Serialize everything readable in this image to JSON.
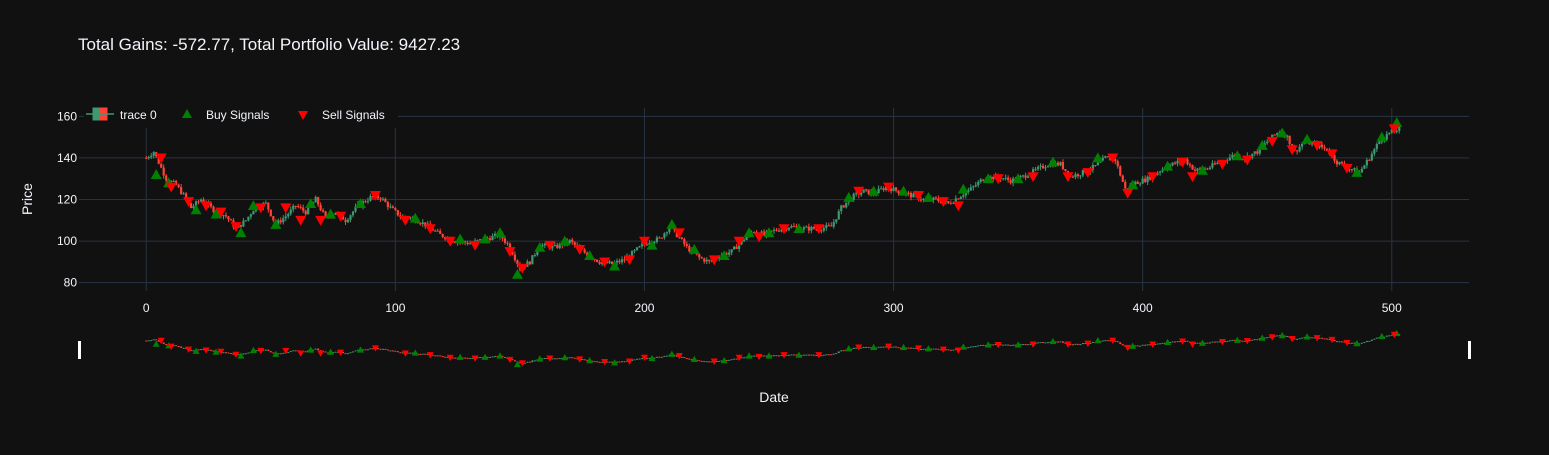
{
  "colors": {
    "background": "#111111",
    "grid": "#283442",
    "text": "#f2f5fa",
    "increasing": "#3d9970",
    "decreasing": "#ff4136",
    "buy": "#008000",
    "sell": "#ff0000"
  },
  "chart_data": {
    "type": "candlestick",
    "title": "Total Gains: -572.77, Total Portfolio Value: 9427.23",
    "xlabel": "Date",
    "ylabel": "Price",
    "xlim": [
      -27,
      531
    ],
    "ylim": [
      76,
      164
    ],
    "x_ticks": [
      0,
      100,
      200,
      300,
      400,
      500
    ],
    "y_ticks": [
      80,
      100,
      120,
      140,
      160
    ],
    "grid": true,
    "legend_position": "top-left",
    "range_slider": true,
    "legend": [
      {
        "label": "trace 0",
        "type": "candlestick"
      },
      {
        "label": "Buy Signals",
        "type": "triangle-up"
      },
      {
        "label": "Sell Signals",
        "type": "triangle-down"
      }
    ],
    "price_path": [
      [
        0,
        140
      ],
      [
        3,
        143
      ],
      [
        8,
        130
      ],
      [
        12,
        127
      ],
      [
        15,
        122
      ],
      [
        18,
        116
      ],
      [
        22,
        120
      ],
      [
        27,
        115
      ],
      [
        32,
        112
      ],
      [
        36,
        106
      ],
      [
        40,
        110
      ],
      [
        44,
        117
      ],
      [
        48,
        118
      ],
      [
        52,
        108
      ],
      [
        56,
        112
      ],
      [
        60,
        117
      ],
      [
        64,
        114
      ],
      [
        68,
        120
      ],
      [
        72,
        111
      ],
      [
        76,
        114
      ],
      [
        80,
        110
      ],
      [
        85,
        117
      ],
      [
        90,
        121
      ],
      [
        94,
        121
      ],
      [
        98,
        116
      ],
      [
        102,
        112
      ],
      [
        107,
        111
      ],
      [
        112,
        108
      ],
      [
        118,
        103
      ],
      [
        124,
        100
      ],
      [
        130,
        99
      ],
      [
        136,
        101
      ],
      [
        142,
        103
      ],
      [
        146,
        97
      ],
      [
        148,
        92
      ],
      [
        150,
        87
      ],
      [
        154,
        90
      ],
      [
        158,
        98
      ],
      [
        164,
        97
      ],
      [
        170,
        100
      ],
      [
        174,
        96
      ],
      [
        178,
        93
      ],
      [
        182,
        90
      ],
      [
        187,
        89
      ],
      [
        192,
        91
      ],
      [
        197,
        96
      ],
      [
        202,
        100
      ],
      [
        206,
        101
      ],
      [
        210,
        107
      ],
      [
        213,
        103
      ],
      [
        217,
        97
      ],
      [
        222,
        92
      ],
      [
        226,
        90
      ],
      [
        230,
        93
      ],
      [
        235,
        95
      ],
      [
        240,
        101
      ],
      [
        244,
        105
      ],
      [
        248,
        103
      ],
      [
        252,
        105
      ],
      [
        258,
        107
      ],
      [
        264,
        106
      ],
      [
        270,
        106
      ],
      [
        275,
        107
      ],
      [
        279,
        116
      ],
      [
        283,
        121
      ],
      [
        288,
        124
      ],
      [
        292,
        123
      ],
      [
        297,
        126
      ],
      [
        302,
        124
      ],
      [
        307,
        122
      ],
      [
        312,
        120
      ],
      [
        317,
        120
      ],
      [
        322,
        118
      ],
      [
        327,
        122
      ],
      [
        331,
        125
      ],
      [
        336,
        130
      ],
      [
        342,
        131
      ],
      [
        347,
        129
      ],
      [
        352,
        131
      ],
      [
        357,
        134
      ],
      [
        362,
        137
      ],
      [
        367,
        137
      ],
      [
        371,
        131
      ],
      [
        376,
        133
      ],
      [
        381,
        136
      ],
      [
        385,
        140
      ],
      [
        389,
        139
      ],
      [
        393,
        125
      ],
      [
        397,
        128
      ],
      [
        402,
        130
      ],
      [
        407,
        134
      ],
      [
        412,
        137
      ],
      [
        417,
        139
      ],
      [
        421,
        134
      ],
      [
        426,
        135
      ],
      [
        431,
        138
      ],
      [
        436,
        141
      ],
      [
        441,
        140
      ],
      [
        446,
        143
      ],
      [
        451,
        149
      ],
      [
        455,
        153
      ],
      [
        458,
        150
      ],
      [
        461,
        143
      ],
      [
        465,
        148
      ],
      [
        470,
        146
      ],
      [
        474,
        144
      ],
      [
        478,
        138
      ],
      [
        483,
        135
      ],
      [
        487,
        133
      ],
      [
        491,
        140
      ],
      [
        495,
        148
      ],
      [
        499,
        152
      ],
      [
        503,
        154
      ]
    ],
    "buy_signals": [
      [
        4,
        132
      ],
      [
        9,
        128
      ],
      [
        20,
        115
      ],
      [
        28,
        113
      ],
      [
        38,
        104
      ],
      [
        43,
        117
      ],
      [
        52,
        108
      ],
      [
        66,
        118
      ],
      [
        74,
        113
      ],
      [
        86,
        118
      ],
      [
        108,
        111
      ],
      [
        126,
        101
      ],
      [
        136,
        101
      ],
      [
        142,
        104
      ],
      [
        149,
        84
      ],
      [
        158,
        97
      ],
      [
        168,
        100
      ],
      [
        178,
        93
      ],
      [
        188,
        88
      ],
      [
        203,
        98
      ],
      [
        211,
        108
      ],
      [
        220,
        96
      ],
      [
        232,
        93
      ],
      [
        242,
        104
      ],
      [
        250,
        104
      ],
      [
        262,
        106
      ],
      [
        282,
        121
      ],
      [
        292,
        124
      ],
      [
        304,
        124
      ],
      [
        314,
        121
      ],
      [
        328,
        125
      ],
      [
        338,
        130
      ],
      [
        350,
        130
      ],
      [
        364,
        138
      ],
      [
        382,
        140
      ],
      [
        396,
        127
      ],
      [
        410,
        136
      ],
      [
        424,
        134
      ],
      [
        438,
        141
      ],
      [
        448,
        146
      ],
      [
        456,
        152
      ],
      [
        466,
        149
      ],
      [
        486,
        133
      ],
      [
        496,
        150
      ],
      [
        502,
        157
      ]
    ],
    "sell_signals": [
      [
        6,
        140
      ],
      [
        10,
        126
      ],
      [
        17,
        119
      ],
      [
        24,
        117
      ],
      [
        30,
        114
      ],
      [
        36,
        107
      ],
      [
        46,
        116
      ],
      [
        56,
        116
      ],
      [
        62,
        110
      ],
      [
        70,
        110
      ],
      [
        78,
        112
      ],
      [
        92,
        122
      ],
      [
        104,
        110
      ],
      [
        114,
        106
      ],
      [
        122,
        100
      ],
      [
        132,
        98
      ],
      [
        146,
        95
      ],
      [
        151,
        87
      ],
      [
        162,
        98
      ],
      [
        174,
        96
      ],
      [
        184,
        90
      ],
      [
        194,
        91
      ],
      [
        200,
        100
      ],
      [
        214,
        104
      ],
      [
        228,
        91
      ],
      [
        238,
        100
      ],
      [
        246,
        102
      ],
      [
        256,
        106
      ],
      [
        270,
        106
      ],
      [
        286,
        124
      ],
      [
        298,
        126
      ],
      [
        310,
        122
      ],
      [
        320,
        119
      ],
      [
        326,
        117
      ],
      [
        342,
        130
      ],
      [
        356,
        131
      ],
      [
        370,
        131
      ],
      [
        378,
        133
      ],
      [
        388,
        140
      ],
      [
        394,
        123
      ],
      [
        404,
        131
      ],
      [
        416,
        138
      ],
      [
        420,
        131
      ],
      [
        432,
        137
      ],
      [
        442,
        139
      ],
      [
        452,
        148
      ],
      [
        460,
        144
      ],
      [
        470,
        146
      ],
      [
        476,
        142
      ],
      [
        482,
        135
      ],
      [
        501,
        154
      ]
    ]
  }
}
